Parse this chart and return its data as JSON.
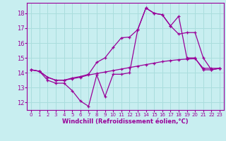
{
  "xlabel": "Windchill (Refroidissement éolien,°C)",
  "bg_color": "#c8eef0",
  "line_color": "#990099",
  "grid_color": "#aadddd",
  "xlim": [
    -0.5,
    23.5
  ],
  "ylim": [
    11.5,
    18.7
  ],
  "xticks": [
    0,
    1,
    2,
    3,
    4,
    5,
    6,
    7,
    8,
    9,
    10,
    11,
    12,
    13,
    14,
    15,
    16,
    17,
    18,
    19,
    20,
    21,
    22,
    23
  ],
  "yticks": [
    12,
    13,
    14,
    15,
    16,
    17,
    18
  ],
  "line1_x": [
    0,
    1,
    2,
    3,
    4,
    5,
    6,
    7,
    8,
    9,
    10,
    11,
    12,
    13,
    14,
    15,
    16,
    17,
    18,
    19,
    20,
    21,
    22,
    23
  ],
  "line1_y": [
    14.2,
    14.1,
    13.5,
    13.3,
    13.3,
    12.8,
    12.1,
    11.75,
    13.85,
    12.4,
    13.9,
    13.9,
    14.0,
    16.9,
    18.35,
    18.0,
    17.9,
    17.15,
    17.8,
    15.0,
    15.0,
    14.2,
    14.2,
    14.3
  ],
  "line2_x": [
    0,
    1,
    2,
    3,
    4,
    5,
    6,
    7,
    8,
    9,
    10,
    11,
    12,
    13,
    14,
    15,
    16,
    17,
    18,
    19,
    20,
    21,
    22,
    23
  ],
  "line2_y": [
    14.2,
    14.1,
    13.7,
    13.5,
    13.5,
    13.6,
    13.7,
    13.85,
    13.95,
    14.05,
    14.15,
    14.25,
    14.35,
    14.45,
    14.55,
    14.65,
    14.75,
    14.82,
    14.88,
    14.92,
    14.95,
    14.3,
    14.3,
    14.3
  ],
  "line3_x": [
    0,
    1,
    2,
    3,
    4,
    5,
    6,
    7,
    8,
    9,
    10,
    11,
    12,
    13,
    14,
    15,
    16,
    17,
    18,
    19,
    20,
    21,
    22,
    23
  ],
  "line3_y": [
    14.2,
    14.1,
    13.7,
    13.5,
    13.5,
    13.65,
    13.75,
    13.9,
    14.7,
    15.0,
    15.7,
    16.35,
    16.4,
    16.9,
    18.35,
    18.0,
    17.9,
    17.15,
    16.6,
    16.7,
    16.7,
    15.0,
    14.2,
    14.3
  ]
}
